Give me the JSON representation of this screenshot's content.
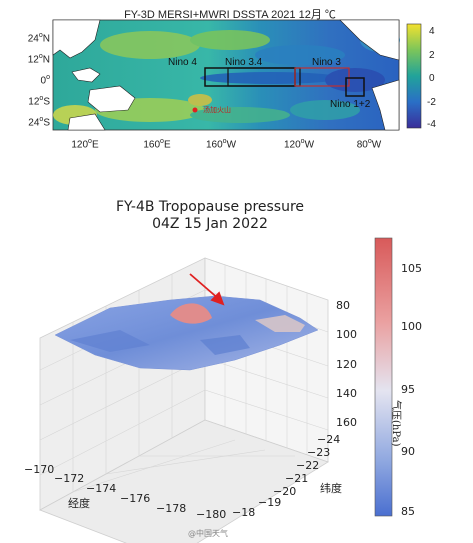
{
  "map": {
    "title": "FY-3D MERSI+MWRI DSSTA 2021 12月 ℃",
    "lat_labels": [
      {
        "sup_parts": [
          "24",
          "N"
        ]
      },
      {
        "sup_parts": [
          "12",
          "N"
        ]
      },
      {
        "sup_parts": [
          "0",
          ""
        ]
      },
      {
        "sup_parts": [
          "12",
          "S"
        ]
      },
      {
        "sup_parts": [
          "24",
          "S"
        ]
      }
    ],
    "lon_labels": [
      {
        "sup_parts": [
          "120",
          "E"
        ]
      },
      {
        "sup_parts": [
          "160",
          "E"
        ]
      },
      {
        "sup_parts": [
          "160",
          "W"
        ]
      },
      {
        "sup_parts": [
          "120",
          "W"
        ]
      },
      {
        "sup_parts": [
          "80",
          "W"
        ]
      }
    ],
    "colorbar_ticks": [
      "4",
      "2",
      "0",
      "-2",
      "-4"
    ],
    "regions": {
      "nino4": "Nino 4",
      "nino34": "Nino 3.4",
      "nino3": "Nino 3",
      "nino12": "Nino 1+2",
      "tonga": "汤加火山"
    }
  },
  "plot3d": {
    "title_line1": "FY-4B Tropopause pressure",
    "title_line2": "04Z 15 Jan 2022",
    "z_ticks": [
      "80",
      "100",
      "120",
      "140",
      "160"
    ],
    "x_ticks": [
      "−170",
      "−172",
      "−174",
      "−176",
      "−178",
      "−180"
    ],
    "y_ticks": [
      "−24",
      "−23",
      "−22",
      "−21",
      "−20",
      "−19",
      "−18"
    ],
    "xlabel": "经度",
    "ylabel": "纬度",
    "colorbar_label": "气压(hPa)",
    "colorbar_ticks": [
      "105",
      "100",
      "95",
      "90",
      "85"
    ]
  },
  "watermark": "@中国天气",
  "colors": {
    "sst_cold": "#3a4cc0",
    "sst_mid": "#2ea8a0",
    "sst_warm": "#e8d33a",
    "pressure_low": "#4a6fd0",
    "pressure_high": "#d85a5a",
    "arrow": "#e02020"
  }
}
